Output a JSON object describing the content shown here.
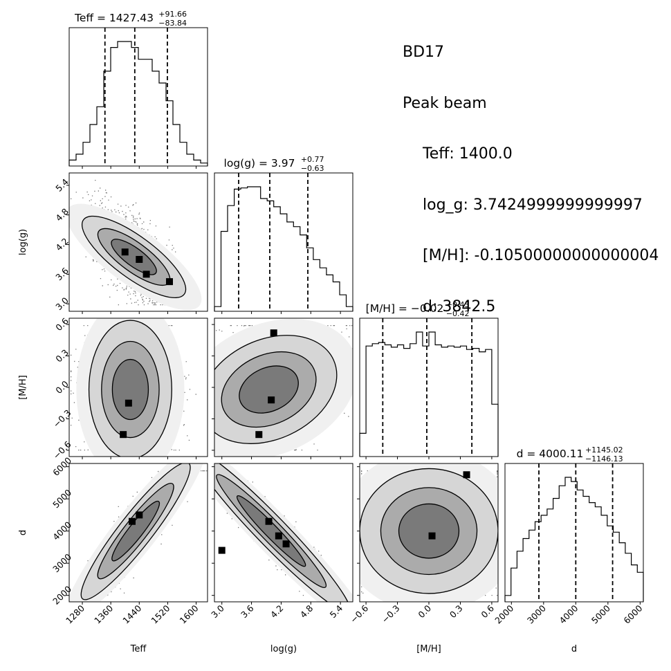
{
  "info": {
    "object": "BD17",
    "subtitle": "Peak beam",
    "lines": [
      "Teff: 1400.0",
      "log_g: 3.7424999999999997",
      "[M/H]: -0.10500000000000004",
      "d: 3842.5"
    ]
  },
  "chart_data": {
    "type": "corner",
    "parameters": [
      {
        "key": "teff",
        "label": "Teff",
        "range": [
          1243,
          1632
        ],
        "ticks": [
          1280,
          1360,
          1440,
          1520,
          1600
        ],
        "tick_labels": [
          "1280",
          "1360",
          "1440",
          "1520",
          "1600"
        ],
        "quantiles": [
          1343.59,
          1427.43,
          1519.09
        ],
        "title_main": "Teff = 1427.43",
        "title_sup": "+91.66",
        "title_sub": "−83.84",
        "hist": [
          1,
          2,
          4,
          7,
          10,
          16,
          20,
          21,
          21,
          20,
          18,
          18,
          16,
          14,
          11,
          7,
          4,
          2,
          1,
          0.5
        ]
      },
      {
        "key": "logg",
        "label": "log(g)",
        "range": [
          2.85,
          5.65
        ],
        "ticks": [
          3.0,
          3.6,
          4.2,
          4.8,
          5.4
        ],
        "tick_labels": [
          "3.0",
          "3.6",
          "4.2",
          "4.8",
          "5.4"
        ],
        "quantiles": [
          3.34,
          3.97,
          4.74
        ],
        "title_main": "log(g) = 3.97",
        "title_sup": "+0.77",
        "title_sub": "−0.63",
        "hist": [
          0.2,
          3.4,
          4.5,
          5.2,
          5.25,
          5.3,
          5.3,
          4.8,
          4.7,
          4.45,
          4.15,
          3.8,
          3.6,
          3.25,
          2.7,
          2.2,
          1.85,
          1.55,
          1.25,
          0.7,
          0.2
        ]
      },
      {
        "key": "mh",
        "label": "[M/H]",
        "range": [
          -0.66,
          0.66
        ],
        "ticks": [
          -0.6,
          -0.3,
          0.0,
          0.3,
          0.6
        ],
        "tick_labels": [
          "−0.6",
          "−0.3",
          "0.0",
          "0.3",
          "0.6"
        ],
        "quantiles": [
          -0.44,
          -0.02,
          0.41
        ],
        "title_main": "[M/H] = −0.02",
        "title_sup": "+0.43",
        "title_sub": "−0.42",
        "hist": [
          0.2,
          0.95,
          0.97,
          0.98,
          0.96,
          0.94,
          0.96,
          0.93,
          0.97,
          1.07,
          0.95,
          1.07,
          0.96,
          0.94,
          0.95,
          0.94,
          0.95,
          0.92,
          0.93,
          0.9,
          0.92,
          0.45
        ]
      },
      {
        "key": "d",
        "label": "d",
        "range": [
          1800,
          6100
        ],
        "ticks": [
          2000,
          3000,
          4000,
          5000,
          6000
        ],
        "tick_labels": [
          "2000",
          "3000",
          "4000",
          "5000",
          "6000"
        ],
        "quantiles": [
          2853.98,
          4000.11,
          5145.13
        ],
        "title_main": "d = 4000.11",
        "title_sup": "+1145.02",
        "title_sub": "−1146.13",
        "hist": [
          0.3,
          1.6,
          2.4,
          3,
          3.4,
          3.8,
          4.1,
          4.4,
          4.9,
          5.5,
          5.9,
          5.7,
          5.3,
          5.0,
          4.7,
          4.5,
          4.1,
          3.6,
          3.3,
          2.8,
          2.3,
          1.75,
          1.4
        ]
      }
    ],
    "pairs": [
      {
        "x": "teff",
        "y": "logg",
        "mean": [
          1425,
          3.95
        ],
        "sd": [
          55,
          0.45
        ],
        "corr": -0.65,
        "peaks": [
          [
            1440,
            3.9
          ],
          [
            1400,
            4.05
          ],
          [
            1525,
            3.45
          ],
          [
            1460,
            3.6
          ]
        ]
      },
      {
        "x": "teff",
        "y": "mh",
        "mean": [
          1415,
          -0.02
        ],
        "sd": [
          60,
          0.34
        ],
        "corr": 0.0,
        "peaks": [
          [
            1395,
            -0.45
          ],
          [
            1410,
            -0.15
          ]
        ]
      },
      {
        "x": "logg",
        "y": "mh",
        "mean": [
          3.95,
          -0.02
        ],
        "sd": [
          0.55,
          0.34
        ],
        "corr": 0.35,
        "peaks": [
          [
            3.75,
            -0.45
          ],
          [
            4.05,
            0.52
          ],
          [
            4.0,
            -0.12
          ]
        ]
      },
      {
        "x": "teff",
        "y": "d",
        "mean": [
          1430,
          4000
        ],
        "sd": [
          65,
          1000
        ],
        "corr": 0.92,
        "peaks": [
          [
            1440,
            4500
          ],
          [
            1420,
            4300
          ]
        ]
      },
      {
        "x": "logg",
        "y": "d",
        "mean": [
          4.0,
          4000
        ],
        "sd": [
          0.6,
          1000
        ],
        "corr": -0.95,
        "peaks": [
          [
            3.95,
            4300
          ],
          [
            4.15,
            3850
          ],
          [
            4.3,
            3600
          ],
          [
            3.0,
            3400
          ]
        ]
      },
      {
        "x": "mh",
        "y": "d",
        "mean": [
          0.0,
          4000
        ],
        "sd": [
          0.34,
          1000
        ],
        "corr": 0.0,
        "peaks": [
          [
            0.03,
            3850
          ],
          [
            0.36,
            5750
          ]
        ]
      }
    ]
  }
}
